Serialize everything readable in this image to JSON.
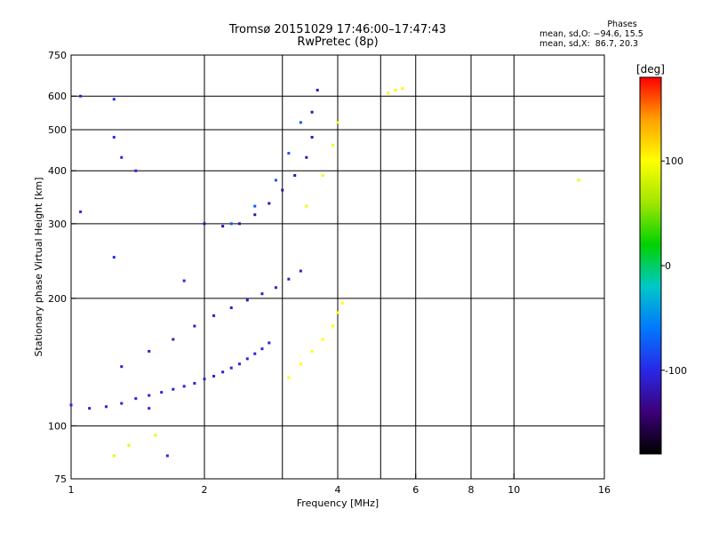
{
  "header": {
    "title": "Tromsø 20151029 17:46:00–17:47:43",
    "subtitle": "RwPretec (8p)"
  },
  "stats": {
    "heading": "Phases",
    "line1": "mean, sd,O: −94.6, 15.5",
    "line2": "mean, sd,X:  86.7, 20.3"
  },
  "colorbar": {
    "label": "[deg]",
    "ticks": [
      "100",
      "0",
      "-100"
    ]
  },
  "chart_data": {
    "type": "scatter",
    "xlabel": "Frequency [MHz]",
    "ylabel": "Stationary phase Virtual Height [km]",
    "xscale": "log",
    "yscale": "log",
    "xlim": [
      1,
      16
    ],
    "ylim": [
      75,
      750
    ],
    "xticks": [
      1,
      2,
      4,
      6,
      8,
      10,
      16
    ],
    "xtick_labels": [
      "1",
      "2",
      "4",
      "6",
      "8",
      "10",
      "16"
    ],
    "yticks": [
      75,
      100,
      200,
      300,
      400,
      500,
      600,
      750
    ],
    "ytick_labels": [
      "75",
      "100",
      "200",
      "300",
      "400",
      "500",
      "600",
      "750"
    ],
    "xgrid": [
      2,
      3,
      4,
      5,
      6,
      8,
      10
    ],
    "ygrid": [
      100,
      200,
      300,
      400,
      500,
      600
    ],
    "color_scale": {
      "quantity": "phase",
      "unit": "deg",
      "range": [
        -180,
        180
      ],
      "colormap": [
        "#000000",
        "#3c0078",
        "#2828e6",
        "#0078ff",
        "#00c8c8",
        "#00d200",
        "#a0e600",
        "#ffff00",
        "#ffa000",
        "#ff0000"
      ]
    },
    "series": [
      {
        "mode": "O",
        "traces": [
          {
            "points": [
              [
                1.0,
                112
              ],
              [
                1.1,
                110
              ],
              [
                1.2,
                111
              ],
              [
                1.3,
                113
              ],
              [
                1.4,
                116
              ],
              [
                1.5,
                118
              ],
              [
                1.6,
                120
              ],
              [
                1.7,
                122
              ],
              [
                1.8,
                124
              ],
              [
                1.9,
                126
              ],
              [
                2.0,
                129
              ],
              [
                2.1,
                131
              ],
              [
                2.2,
                134
              ],
              [
                2.3,
                137
              ],
              [
                2.4,
                140
              ],
              [
                2.5,
                144
              ],
              [
                2.6,
                148
              ],
              [
                2.7,
                152
              ],
              [
                2.8,
                157
              ]
            ],
            "phase": -105
          },
          {
            "points": [
              [
                1.3,
                138
              ],
              [
                1.5,
                150
              ],
              [
                1.7,
                160
              ],
              [
                1.9,
                172
              ],
              [
                2.1,
                182
              ],
              [
                2.3,
                190
              ],
              [
                2.5,
                198
              ],
              [
                2.7,
                205
              ],
              [
                2.9,
                212
              ],
              [
                3.1,
                222
              ],
              [
                3.3,
                232
              ]
            ],
            "phase": -110
          },
          {
            "points": [
              [
                2.0,
                300
              ],
              [
                2.2,
                296
              ],
              [
                2.4,
                300
              ],
              [
                2.6,
                315
              ],
              [
                2.8,
                335
              ],
              [
                3.0,
                360
              ],
              [
                3.2,
                390
              ],
              [
                3.4,
                430
              ],
              [
                3.5,
                480
              ],
              [
                3.5,
                550
              ],
              [
                3.6,
                620
              ]
            ],
            "phase": -120
          },
          {
            "points": [
              [
                2.3,
                300
              ],
              [
                2.6,
                330
              ],
              [
                2.9,
                380
              ],
              [
                3.1,
                440
              ],
              [
                3.3,
                520
              ]
            ],
            "phase": -75
          },
          {
            "points": [
              [
                1.05,
                600
              ],
              [
                1.05,
                320
              ],
              [
                1.25,
                590
              ],
              [
                1.25,
                480
              ],
              [
                1.3,
                430
              ],
              [
                1.4,
                400
              ],
              [
                1.25,
                250
              ],
              [
                1.5,
                110
              ],
              [
                1.65,
                85
              ],
              [
                1.8,
                220
              ]
            ],
            "phase": -100
          }
        ]
      },
      {
        "mode": "X",
        "traces": [
          {
            "points": [
              [
                3.1,
                130
              ],
              [
                3.3,
                140
              ],
              [
                3.5,
                150
              ],
              [
                3.7,
                160
              ],
              [
                3.9,
                172
              ],
              [
                4.0,
                185
              ],
              [
                4.1,
                195
              ]
            ],
            "phase": 100
          },
          {
            "points": [
              [
                3.4,
                330
              ],
              [
                3.7,
                390
              ],
              [
                3.9,
                460
              ],
              [
                4.0,
                520
              ]
            ],
            "phase": 95
          },
          {
            "points": [
              [
                5.2,
                610
              ],
              [
                5.4,
                620
              ],
              [
                5.6,
                625
              ]
            ],
            "phase": 105
          },
          {
            "points": [
              [
                1.25,
                85
              ],
              [
                1.35,
                90
              ],
              [
                1.55,
                95
              ],
              [
                14.0,
                380
              ]
            ],
            "phase": 90
          }
        ]
      }
    ]
  }
}
